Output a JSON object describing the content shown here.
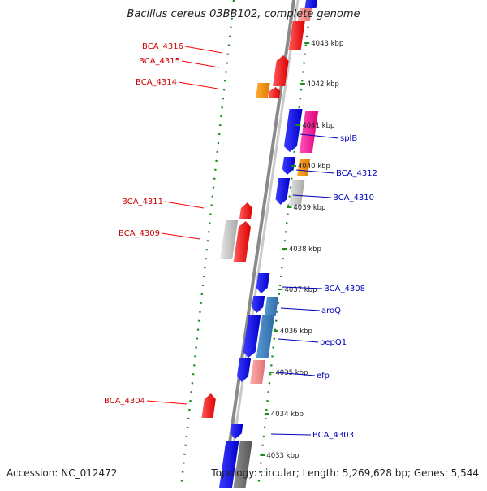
{
  "title": "Bacillus cereus 03BB102, complete genome",
  "footer": {
    "accession": "Accession: NC_012472",
    "topology": "Topology: circular; Length: 5,269,628 bp; Genes: 5,544"
  },
  "colors": {
    "backbone": "#8a8a8a",
    "dotted_ring": "#1c8c1c",
    "forward_gene": "#ff0000",
    "reverse_gene": "#0000ff",
    "left_label": "#cc0000",
    "right_label": "#0000bb",
    "tick_label": "#222222"
  },
  "ticks": [
    "4043 kbp",
    "4042 kbp",
    "4041 kbp",
    "4040 kbp",
    "4039 kbp",
    "4038 kbp",
    "4037 kbp",
    "4036 kbp",
    "4035 kbp",
    "4034 kbp",
    "4033 kbp"
  ],
  "left_labels": [
    "BCA_4316",
    "BCA_4315",
    "BCA_4314",
    "BCA_4311",
    "BCA_4309",
    "BCA_4304"
  ],
  "right_labels": [
    "splB",
    "BCA_4312",
    "BCA_4310",
    "BCA_4308",
    "aroQ",
    "pepQ1",
    "efp",
    "BCA_4303"
  ]
}
